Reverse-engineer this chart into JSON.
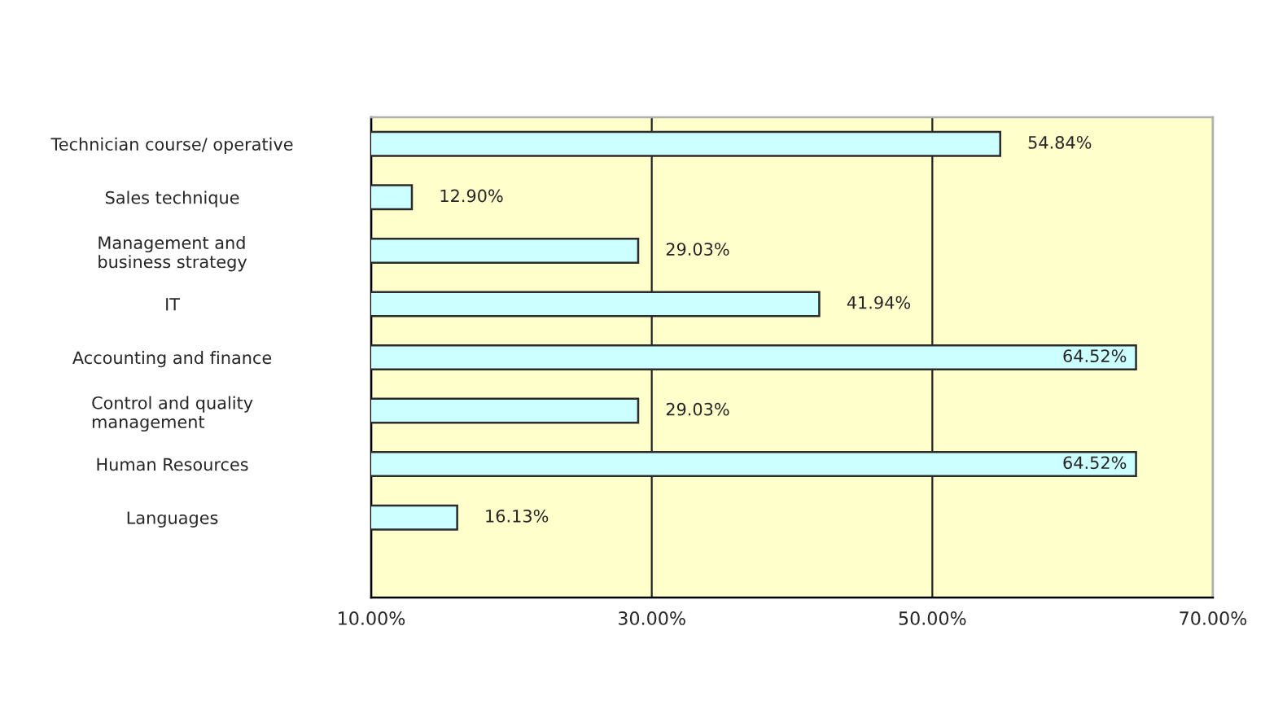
{
  "chart_data": {
    "type": "bar",
    "orientation": "horizontal",
    "categories": [
      "Technician course/ operative",
      "Sales technique",
      "Management and\nbusiness strategy",
      "IT",
      "Accounting and finance",
      "Control and quality\nmanagement",
      "Human Resources",
      "Languages"
    ],
    "values": [
      54.84,
      12.9,
      29.03,
      41.94,
      64.52,
      29.03,
      64.52,
      16.13
    ],
    "value_labels": [
      "54.84%",
      "12.90%",
      "29.03%",
      "41.94%",
      "64.52%",
      "29.03%",
      "64.52%",
      "16.13%"
    ],
    "color": "#ccffff",
    "xlim": [
      10,
      70
    ],
    "xticks": [
      {
        "value": 10,
        "label": "10.00%"
      },
      {
        "value": 30,
        "label": "30.00%"
      },
      {
        "value": 50,
        "label": "50.00%"
      },
      {
        "value": 70,
        "label": "70.00%"
      }
    ],
    "grid": "x"
  }
}
